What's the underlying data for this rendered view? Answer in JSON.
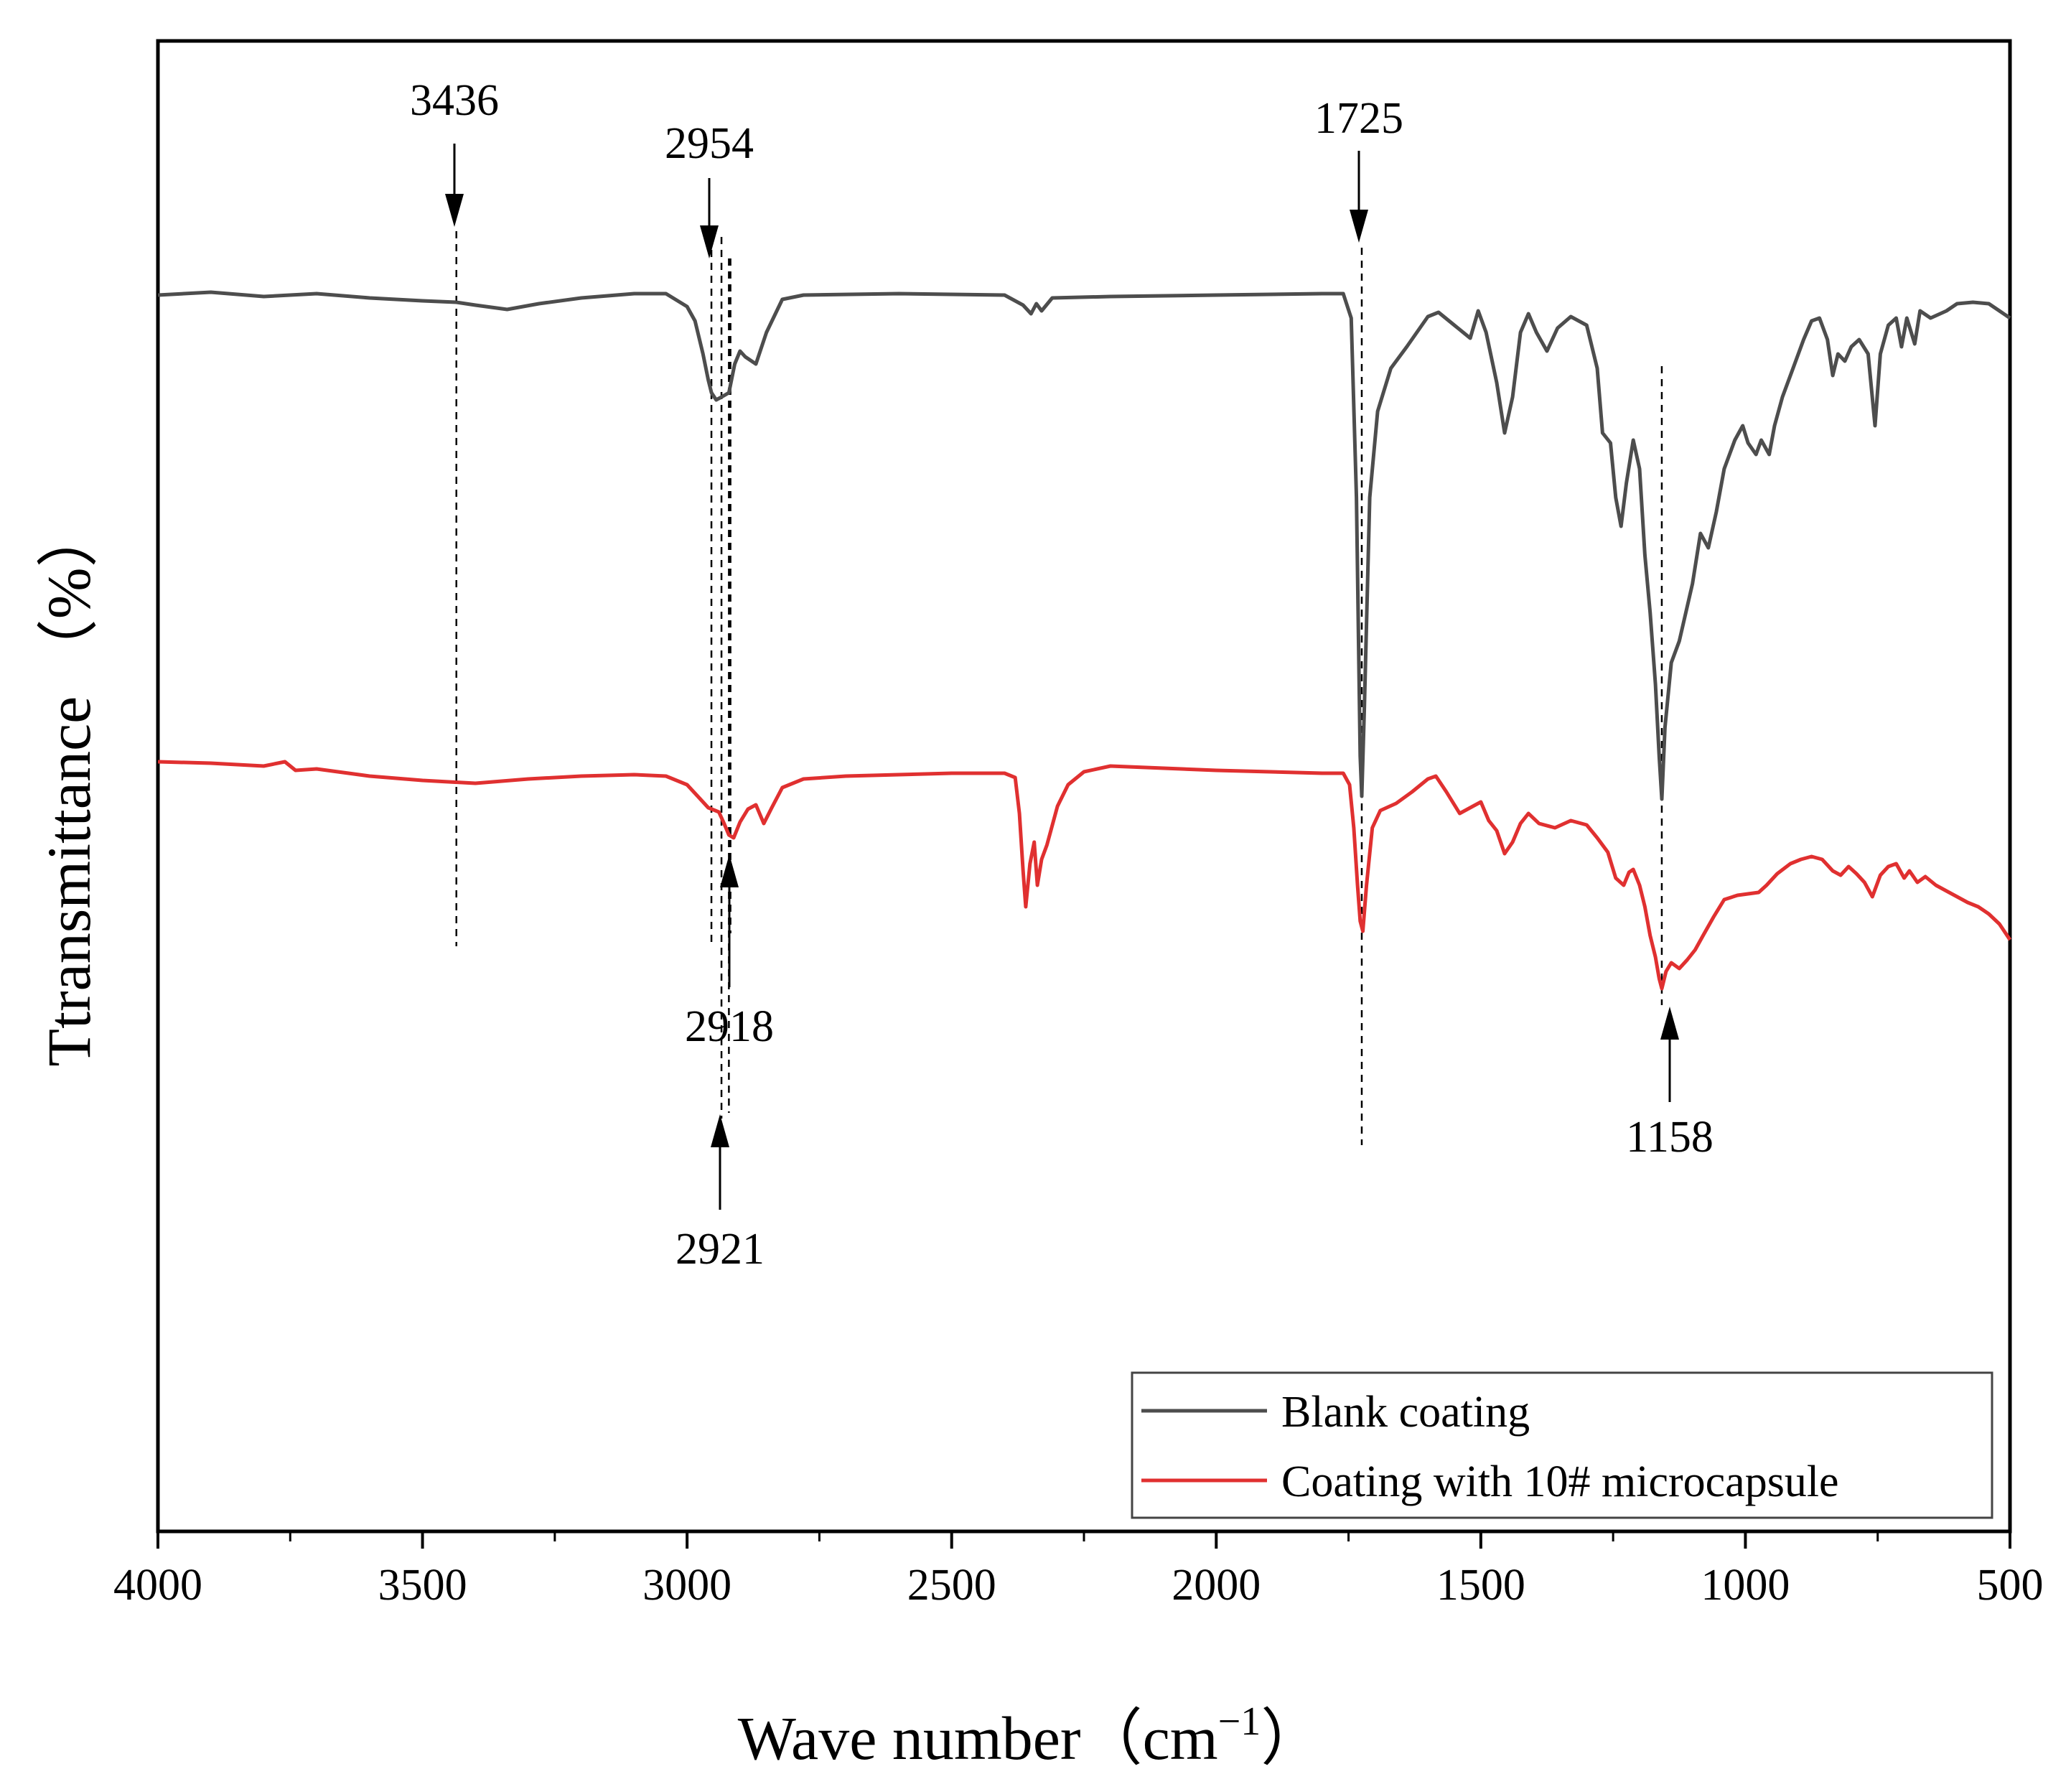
{
  "chart_data": {
    "type": "line",
    "title": "",
    "xlabel": "Wave number",
    "xlabel_unit": "（cm",
    "xlabel_sup": "−1",
    "xlabel_close": "）",
    "ylabel": "Ttransmittance （%）",
    "xlim": [
      4000,
      500
    ],
    "ylim": [
      0,
      100
    ],
    "x_ticks": [
      4000,
      3500,
      3000,
      2500,
      2000,
      1500,
      1000,
      500
    ],
    "x_tick_labels": [
      "4000",
      "3500",
      "3000",
      "2500",
      "2000",
      "1500",
      "1000",
      "500"
    ],
    "grid": false,
    "legend_position": "bottom-right",
    "series": [
      {
        "name": "Blank coating",
        "color": "#4d4d4d",
        "points": [
          [
            4000,
            86.1
          ],
          [
            3900,
            86.3
          ],
          [
            3800,
            86.0
          ],
          [
            3700,
            86.2
          ],
          [
            3600,
            85.9
          ],
          [
            3500,
            85.7
          ],
          [
            3436,
            85.6
          ],
          [
            3400,
            85.4
          ],
          [
            3340,
            85.1
          ],
          [
            3280,
            85.5
          ],
          [
            3200,
            85.9
          ],
          [
            3100,
            86.2
          ],
          [
            3040,
            86.2
          ],
          [
            3000,
            85.3
          ],
          [
            2985,
            84.3
          ],
          [
            2970,
            82.0
          ],
          [
            2960,
            80.2
          ],
          [
            2954,
            79.3
          ],
          [
            2945,
            78.8
          ],
          [
            2935,
            79.0
          ],
          [
            2921,
            79.3
          ],
          [
            2910,
            81.3
          ],
          [
            2900,
            82.2
          ],
          [
            2890,
            81.8
          ],
          [
            2870,
            81.3
          ],
          [
            2850,
            83.5
          ],
          [
            2820,
            85.8
          ],
          [
            2780,
            86.1
          ],
          [
            2600,
            86.2
          ],
          [
            2400,
            86.1
          ],
          [
            2365,
            85.4
          ],
          [
            2350,
            84.8
          ],
          [
            2340,
            85.5
          ],
          [
            2330,
            85.0
          ],
          [
            2310,
            85.9
          ],
          [
            2200,
            86.0
          ],
          [
            2000,
            86.1
          ],
          [
            1800,
            86.2
          ],
          [
            1760,
            86.2
          ],
          [
            1745,
            84.5
          ],
          [
            1735,
            72.0
          ],
          [
            1728,
            54.0
          ],
          [
            1725,
            51.2
          ],
          [
            1720,
            57.5
          ],
          [
            1710,
            72.0
          ],
          [
            1695,
            78.0
          ],
          [
            1670,
            81.0
          ],
          [
            1640,
            82.5
          ],
          [
            1600,
            84.6
          ],
          [
            1580,
            84.9
          ],
          [
            1550,
            84.0
          ],
          [
            1520,
            83.1
          ],
          [
            1505,
            85.0
          ],
          [
            1490,
            83.5
          ],
          [
            1470,
            80.0
          ],
          [
            1455,
            76.5
          ],
          [
            1440,
            79.0
          ],
          [
            1425,
            83.5
          ],
          [
            1410,
            84.8
          ],
          [
            1395,
            83.5
          ],
          [
            1375,
            82.2
          ],
          [
            1355,
            83.8
          ],
          [
            1330,
            84.6
          ],
          [
            1300,
            84.0
          ],
          [
            1280,
            81.0
          ],
          [
            1270,
            76.5
          ],
          [
            1255,
            75.8
          ],
          [
            1245,
            72.0
          ],
          [
            1235,
            70.0
          ],
          [
            1225,
            73.0
          ],
          [
            1212,
            76.0
          ],
          [
            1200,
            74.0
          ],
          [
            1190,
            68.0
          ],
          [
            1180,
            64.0
          ],
          [
            1170,
            59.0
          ],
          [
            1163,
            54.0
          ],
          [
            1158,
            51.0
          ],
          [
            1152,
            56.0
          ],
          [
            1140,
            60.5
          ],
          [
            1125,
            62.0
          ],
          [
            1100,
            66.0
          ],
          [
            1085,
            69.5
          ],
          [
            1070,
            68.5
          ],
          [
            1055,
            71.0
          ],
          [
            1040,
            74.0
          ],
          [
            1020,
            76.0
          ],
          [
            1005,
            77.0
          ],
          [
            995,
            75.8
          ],
          [
            980,
            75.0
          ],
          [
            970,
            76.0
          ],
          [
            955,
            75.0
          ],
          [
            945,
            77.0
          ],
          [
            930,
            79.0
          ],
          [
            910,
            81.0
          ],
          [
            890,
            83.0
          ],
          [
            875,
            84.3
          ],
          [
            860,
            84.5
          ],
          [
            845,
            83.0
          ],
          [
            835,
            80.5
          ],
          [
            825,
            82.0
          ],
          [
            812,
            81.5
          ],
          [
            800,
            82.5
          ],
          [
            785,
            83.0
          ],
          [
            768,
            82.0
          ],
          [
            755,
            77.0
          ],
          [
            745,
            82.0
          ],
          [
            730,
            84.0
          ],
          [
            715,
            84.5
          ],
          [
            705,
            82.5
          ],
          [
            695,
            84.5
          ],
          [
            680,
            82.7
          ],
          [
            670,
            85.0
          ],
          [
            650,
            84.5
          ],
          [
            620,
            85.0
          ],
          [
            600,
            85.5
          ],
          [
            570,
            85.6
          ],
          [
            540,
            85.5
          ],
          [
            520,
            85.0
          ],
          [
            500,
            84.5
          ]
        ]
      },
      {
        "name": "Coating with 10# microcapsule",
        "color": "#e03030",
        "points": [
          [
            4000,
            53.6
          ],
          [
            3900,
            53.5
          ],
          [
            3800,
            53.3
          ],
          [
            3760,
            53.6
          ],
          [
            3740,
            53.0
          ],
          [
            3700,
            53.1
          ],
          [
            3600,
            52.6
          ],
          [
            3500,
            52.3
          ],
          [
            3400,
            52.1
          ],
          [
            3300,
            52.4
          ],
          [
            3200,
            52.6
          ],
          [
            3100,
            52.7
          ],
          [
            3040,
            52.6
          ],
          [
            3000,
            52.0
          ],
          [
            2980,
            51.2
          ],
          [
            2960,
            50.4
          ],
          [
            2940,
            50.1
          ],
          [
            2930,
            49.3
          ],
          [
            2921,
            48.5
          ],
          [
            2912,
            48.3
          ],
          [
            2900,
            49.4
          ],
          [
            2885,
            50.3
          ],
          [
            2870,
            50.6
          ],
          [
            2855,
            49.3
          ],
          [
            2840,
            50.4
          ],
          [
            2820,
            51.8
          ],
          [
            2780,
            52.4
          ],
          [
            2700,
            52.6
          ],
          [
            2600,
            52.7
          ],
          [
            2500,
            52.8
          ],
          [
            2400,
            52.8
          ],
          [
            2380,
            52.5
          ],
          [
            2372,
            50.0
          ],
          [
            2365,
            46.0
          ],
          [
            2360,
            43.5
          ],
          [
            2352,
            46.5
          ],
          [
            2344,
            48.0
          ],
          [
            2338,
            45.0
          ],
          [
            2330,
            46.8
          ],
          [
            2320,
            47.8
          ],
          [
            2300,
            50.5
          ],
          [
            2280,
            52.0
          ],
          [
            2250,
            52.9
          ],
          [
            2200,
            53.3
          ],
          [
            2000,
            53.0
          ],
          [
            1800,
            52.8
          ],
          [
            1760,
            52.8
          ],
          [
            1748,
            52.0
          ],
          [
            1740,
            49.0
          ],
          [
            1733,
            45.0
          ],
          [
            1728,
            42.5
          ],
          [
            1723,
            41.8
          ],
          [
            1716,
            45.0
          ],
          [
            1705,
            49.0
          ],
          [
            1690,
            50.2
          ],
          [
            1660,
            50.7
          ],
          [
            1630,
            51.5
          ],
          [
            1600,
            52.4
          ],
          [
            1585,
            52.6
          ],
          [
            1565,
            51.5
          ],
          [
            1540,
            50.0
          ],
          [
            1515,
            50.5
          ],
          [
            1500,
            50.8
          ],
          [
            1485,
            49.5
          ],
          [
            1470,
            48.8
          ],
          [
            1455,
            47.2
          ],
          [
            1440,
            48.0
          ],
          [
            1425,
            49.3
          ],
          [
            1410,
            50.0
          ],
          [
            1390,
            49.3
          ],
          [
            1360,
            49.0
          ],
          [
            1330,
            49.5
          ],
          [
            1300,
            49.2
          ],
          [
            1280,
            48.3
          ],
          [
            1260,
            47.3
          ],
          [
            1245,
            45.5
          ],
          [
            1230,
            45.0
          ],
          [
            1220,
            45.9
          ],
          [
            1212,
            46.1
          ],
          [
            1200,
            45.0
          ],
          [
            1190,
            43.5
          ],
          [
            1180,
            41.5
          ],
          [
            1170,
            40.0
          ],
          [
            1163,
            38.5
          ],
          [
            1158,
            37.8
          ],
          [
            1150,
            39.0
          ],
          [
            1140,
            39.6
          ],
          [
            1125,
            39.2
          ],
          [
            1110,
            39.8
          ],
          [
            1095,
            40.5
          ],
          [
            1080,
            41.5
          ],
          [
            1060,
            42.8
          ],
          [
            1040,
            44.0
          ],
          [
            1015,
            44.3
          ],
          [
            995,
            44.4
          ],
          [
            975,
            44.5
          ],
          [
            960,
            45.0
          ],
          [
            940,
            45.8
          ],
          [
            915,
            46.5
          ],
          [
            895,
            46.8
          ],
          [
            875,
            47.0
          ],
          [
            855,
            46.8
          ],
          [
            835,
            46.0
          ],
          [
            820,
            45.7
          ],
          [
            805,
            46.3
          ],
          [
            790,
            45.8
          ],
          [
            775,
            45.2
          ],
          [
            760,
            44.2
          ],
          [
            745,
            45.7
          ],
          [
            730,
            46.3
          ],
          [
            715,
            46.5
          ],
          [
            700,
            45.5
          ],
          [
            690,
            46.0
          ],
          [
            675,
            45.2
          ],
          [
            660,
            45.6
          ],
          [
            640,
            45.0
          ],
          [
            620,
            44.6
          ],
          [
            600,
            44.2
          ],
          [
            580,
            43.8
          ],
          [
            560,
            43.5
          ],
          [
            540,
            43.0
          ],
          [
            520,
            42.3
          ],
          [
            500,
            41.2
          ]
        ]
      }
    ],
    "annotations": [
      {
        "label": "3436",
        "x": 3436
      },
      {
        "label": "2954",
        "x": 2954
      },
      {
        "label": "1725",
        "x": 1725
      },
      {
        "label": "2918",
        "x": 2918
      },
      {
        "label": "2921",
        "x": 2921
      },
      {
        "label": "1158",
        "x": 1158
      }
    ]
  }
}
